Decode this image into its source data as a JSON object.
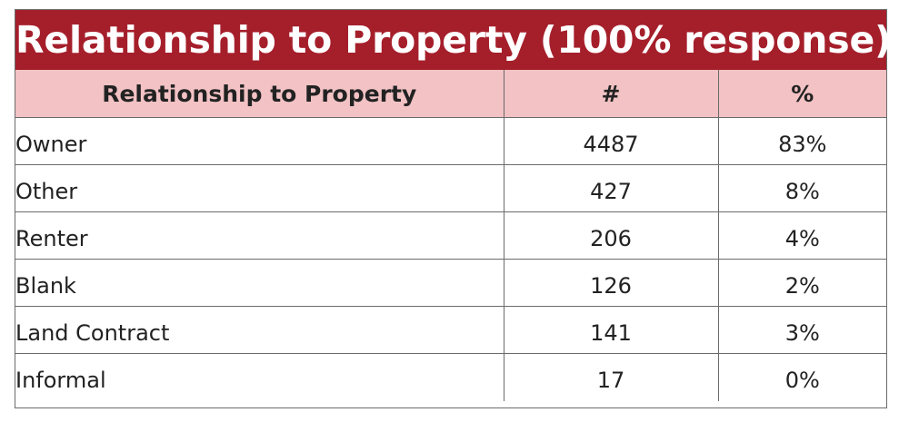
{
  "chart_data": {
    "type": "table",
    "title": "Relationship to Property (100% response)",
    "columns": [
      "Relationship to Property",
      "#",
      "%"
    ],
    "rows": [
      {
        "label": "Owner",
        "count": 4487,
        "percent": "83%"
      },
      {
        "label": "Other",
        "count": 427,
        "percent": "8%"
      },
      {
        "label": "Renter",
        "count": 206,
        "percent": "4%"
      },
      {
        "label": "Blank",
        "count": 126,
        "percent": "2%"
      },
      {
        "label": "Land Contract",
        "count": 141,
        "percent": "3%"
      },
      {
        "label": "Informal",
        "count": 17,
        "percent": "0%"
      }
    ]
  },
  "colors": {
    "title_background": "#a51f2b",
    "title_text": "#ffffff",
    "header_background": "#f2c2c4",
    "border": "#6b6b6b"
  }
}
